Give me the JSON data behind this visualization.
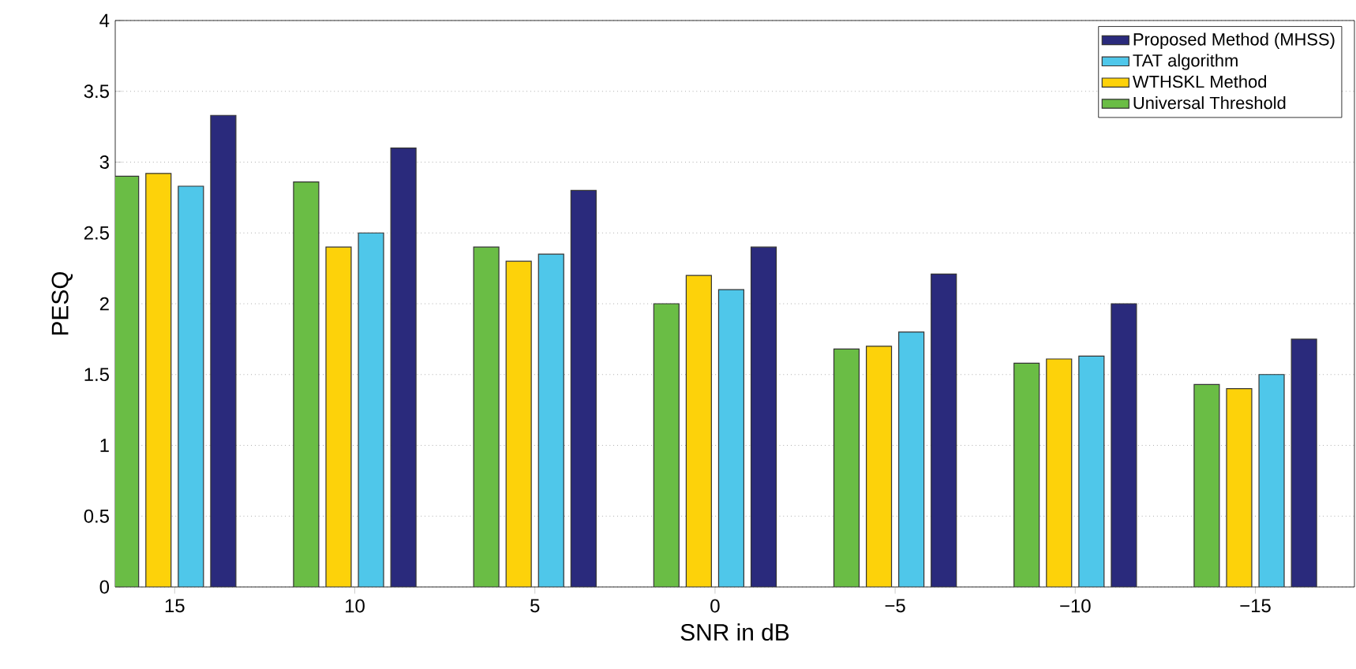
{
  "chart_data": {
    "type": "bar",
    "xlabel": "SNR in dB",
    "ylabel": "PESQ",
    "categories": [
      "15",
      "10",
      "5",
      "0",
      "−5",
      "−10",
      "−15"
    ],
    "series": [
      {
        "name": "Universal Threshold",
        "color": "#6abd45",
        "values": [
          2.9,
          2.86,
          2.4,
          2.0,
          1.68,
          1.58,
          1.43
        ]
      },
      {
        "name": "WTHSKL Method",
        "color": "#fdd20a",
        "values": [
          2.92,
          2.4,
          2.3,
          2.2,
          1.7,
          1.61,
          1.4
        ]
      },
      {
        "name": "TAT algorithm",
        "color": "#4fc7ea",
        "values": [
          2.83,
          2.5,
          2.35,
          2.1,
          1.8,
          1.63,
          1.5
        ]
      },
      {
        "name": "Proposed Method (MHSS)",
        "color": "#2a2a7c",
        "values": [
          3.33,
          3.1,
          2.8,
          2.4,
          2.21,
          2.0,
          1.75
        ]
      }
    ],
    "ylim": [
      0,
      4
    ],
    "yticks": [
      0,
      0.5,
      1,
      1.5,
      2,
      2.5,
      3,
      3.5,
      4
    ],
    "grid": "y",
    "legend": "top right"
  }
}
